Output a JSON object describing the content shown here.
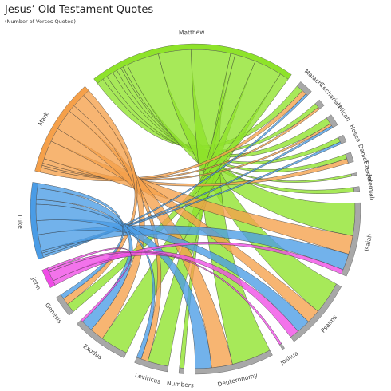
{
  "chart_data": {
    "type": "chord",
    "title": "Jesus’ Old Testament Quotes",
    "subtitle": "(Number of Verses Quoted)",
    "colors": {
      "matthew": "#8ee32a",
      "mark": "#f5a04a",
      "luke": "#4a9ce6",
      "john": "#f04be6",
      "old_testament": "#a8a8a8"
    },
    "groups": [
      {
        "id": "matthew",
        "label": "Matthew",
        "testament": "new"
      },
      {
        "id": "mark",
        "label": "Mark",
        "testament": "new"
      },
      {
        "id": "luke",
        "label": "Luke",
        "testament": "new"
      },
      {
        "id": "john",
        "label": "John",
        "testament": "new"
      },
      {
        "id": "genesis",
        "label": "Genesis",
        "testament": "old"
      },
      {
        "id": "exodus",
        "label": "Exodus",
        "testament": "old"
      },
      {
        "id": "leviticus",
        "label": "Leviticus",
        "testament": "old"
      },
      {
        "id": "numbers",
        "label": "Numbers",
        "testament": "old"
      },
      {
        "id": "deuteronomy",
        "label": "Deuteronomy",
        "testament": "old"
      },
      {
        "id": "joshua",
        "label": "Joshua",
        "testament": "old"
      },
      {
        "id": "psalms",
        "label": "Psalms",
        "testament": "old"
      },
      {
        "id": "isaiah",
        "label": "Isaiah",
        "testament": "old"
      },
      {
        "id": "jeremiah",
        "label": "Jeremiah",
        "testament": "old"
      },
      {
        "id": "ezekiel",
        "label": "Ezekiel",
        "testament": "old"
      },
      {
        "id": "daniel",
        "label": "Daniel",
        "testament": "old"
      },
      {
        "id": "hosea",
        "label": "Hosea",
        "testament": "old"
      },
      {
        "id": "micah",
        "label": "Micah",
        "testament": "old"
      },
      {
        "id": "zechariah",
        "label": "Zechariah",
        "testament": "old"
      },
      {
        "id": "malachi",
        "label": "Malachi",
        "testament": "old"
      }
    ],
    "links": [
      {
        "source": "matthew",
        "target": "malachi",
        "value": 3
      },
      {
        "source": "matthew",
        "target": "zechariah",
        "value": 2
      },
      {
        "source": "matthew",
        "target": "micah",
        "value": 3
      },
      {
        "source": "matthew",
        "target": "hosea",
        "value": 2
      },
      {
        "source": "matthew",
        "target": "daniel",
        "value": 2
      },
      {
        "source": "matthew",
        "target": "ezekiel",
        "value": 1
      },
      {
        "source": "matthew",
        "target": "jeremiah",
        "value": 2
      },
      {
        "source": "matthew",
        "target": "isaiah",
        "value": 14
      },
      {
        "source": "matthew",
        "target": "psalms",
        "value": 14
      },
      {
        "source": "matthew",
        "target": "deuteronomy",
        "value": 17
      },
      {
        "source": "matthew",
        "target": "numbers",
        "value": 2
      },
      {
        "source": "matthew",
        "target": "leviticus",
        "value": 9
      },
      {
        "source": "matthew",
        "target": "exodus",
        "value": 12
      },
      {
        "source": "matthew",
        "target": "genesis",
        "value": 4
      },
      {
        "source": "mark",
        "target": "malachi",
        "value": 2
      },
      {
        "source": "mark",
        "target": "zechariah",
        "value": 1
      },
      {
        "source": "mark",
        "target": "micah",
        "value": 1
      },
      {
        "source": "mark",
        "target": "daniel",
        "value": 2
      },
      {
        "source": "mark",
        "target": "isaiah",
        "value": 8
      },
      {
        "source": "mark",
        "target": "psalms",
        "value": 6
      },
      {
        "source": "mark",
        "target": "deuteronomy",
        "value": 9
      },
      {
        "source": "mark",
        "target": "leviticus",
        "value": 3
      },
      {
        "source": "mark",
        "target": "exodus",
        "value": 6
      },
      {
        "source": "mark",
        "target": "genesis",
        "value": 3
      },
      {
        "source": "luke",
        "target": "malachi",
        "value": 1
      },
      {
        "source": "luke",
        "target": "micah",
        "value": 1
      },
      {
        "source": "luke",
        "target": "hosea",
        "value": 1
      },
      {
        "source": "luke",
        "target": "isaiah",
        "value": 7
      },
      {
        "source": "luke",
        "target": "psalms",
        "value": 6
      },
      {
        "source": "luke",
        "target": "deuteronomy",
        "value": 7
      },
      {
        "source": "luke",
        "target": "leviticus",
        "value": 2
      },
      {
        "source": "luke",
        "target": "exodus",
        "value": 5
      },
      {
        "source": "luke",
        "target": "genesis",
        "value": 2
      },
      {
        "source": "john",
        "target": "isaiah",
        "value": 2
      },
      {
        "source": "john",
        "target": "psalms",
        "value": 4
      },
      {
        "source": "john",
        "target": "joshua",
        "value": 1
      },
      {
        "source": "john",
        "target": "exodus",
        "value": 1
      }
    ],
    "grid": false,
    "legend": "none"
  }
}
